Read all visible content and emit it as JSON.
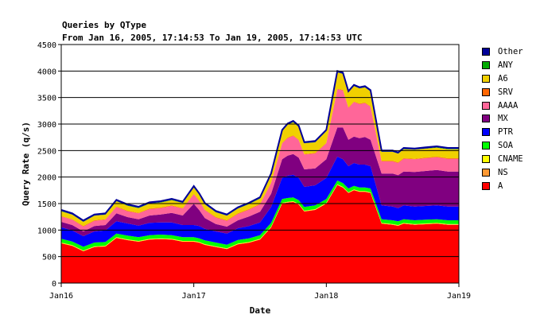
{
  "chart_data": {
    "type": "area",
    "stacked": true,
    "title": "Queries by QType",
    "subtitle": "From Jan 16, 2005, 17:14:53 To Jan 19, 2005, 17:14:53 UTC",
    "xlabel": "Date",
    "ylabel": "Query Rate (q/s)",
    "ylim": [
      0,
      4500
    ],
    "yticks": [
      0,
      500,
      1000,
      1500,
      2000,
      2500,
      3000,
      3500,
      4000,
      4500
    ],
    "x_range": [
      0,
      72
    ],
    "xticks": [
      {
        "at": 0,
        "label": "Jan16"
      },
      {
        "at": 24,
        "label": "Jan17"
      },
      {
        "at": 48,
        "label": "Jan18"
      },
      {
        "at": 72,
        "label": "Jan19"
      }
    ],
    "grid": true,
    "legend_position": "right",
    "x": [
      0,
      2,
      4,
      6,
      8,
      10,
      12,
      14,
      16,
      18,
      20,
      22,
      24,
      25,
      26,
      28,
      30,
      32,
      34,
      36,
      38,
      40,
      41,
      42,
      43,
      44,
      46,
      48,
      50,
      51,
      52,
      53,
      54,
      55,
      56,
      58,
      60,
      61,
      62,
      64,
      66,
      68,
      70,
      72
    ],
    "series": [
      {
        "name": "A",
        "color": "#ff0000",
        "values": [
          750,
          700,
          600,
          680,
          690,
          850,
          810,
          780,
          820,
          830,
          820,
          780,
          780,
          760,
          720,
          680,
          640,
          730,
          760,
          820,
          1050,
          1500,
          1520,
          1530,
          1480,
          1350,
          1380,
          1500,
          1850,
          1800,
          1700,
          1750,
          1720,
          1720,
          1700,
          1120,
          1100,
          1080,
          1120,
          1100,
          1110,
          1120,
          1100,
          1100
        ]
      },
      {
        "name": "NS",
        "color": "#ff9933",
        "values": [
          5,
          5,
          5,
          5,
          5,
          5,
          5,
          5,
          5,
          5,
          5,
          5,
          5,
          5,
          5,
          5,
          5,
          5,
          5,
          5,
          5,
          5,
          5,
          5,
          5,
          5,
          5,
          5,
          5,
          5,
          5,
          5,
          5,
          5,
          5,
          5,
          5,
          5,
          5,
          5,
          5,
          5,
          5,
          5
        ]
      },
      {
        "name": "CNAME",
        "color": "#ffff00",
        "values": [
          10,
          10,
          10,
          10,
          10,
          10,
          10,
          10,
          10,
          10,
          10,
          10,
          10,
          10,
          10,
          10,
          10,
          10,
          10,
          10,
          10,
          10,
          10,
          10,
          10,
          10,
          10,
          10,
          10,
          10,
          10,
          10,
          10,
          10,
          10,
          10,
          10,
          10,
          10,
          10,
          10,
          10,
          10,
          10
        ]
      },
      {
        "name": "SOA",
        "color": "#00ff00",
        "values": [
          70,
          70,
          70,
          70,
          70,
          70,
          70,
          70,
          70,
          70,
          70,
          70,
          70,
          70,
          70,
          70,
          70,
          70,
          70,
          70,
          70,
          70,
          70,
          70,
          70,
          70,
          70,
          70,
          70,
          70,
          70,
          70,
          70,
          70,
          70,
          70,
          70,
          70,
          70,
          70,
          70,
          70,
          70,
          70
        ]
      },
      {
        "name": "PTR",
        "color": "#0000ff",
        "values": [
          220,
          210,
          200,
          210,
          220,
          230,
          230,
          220,
          230,
          230,
          240,
          230,
          230,
          230,
          220,
          210,
          210,
          220,
          230,
          240,
          300,
          400,
          420,
          430,
          420,
          380,
          380,
          400,
          450,
          450,
          420,
          430,
          430,
          430,
          420,
          260,
          260,
          250,
          260,
          260,
          260,
          260,
          260,
          260
        ]
      },
      {
        "name": "MX",
        "color": "#800080",
        "values": [
          100,
          100,
          90,
          100,
          100,
          150,
          120,
          120,
          140,
          150,
          180,
          180,
          400,
          300,
          200,
          140,
          130,
          150,
          180,
          200,
          250,
          350,
          380,
          390,
          380,
          330,
          320,
          350,
          550,
          600,
          500,
          500,
          500,
          520,
          500,
          600,
          620,
          620,
          640,
          650,
          660,
          670,
          660,
          660
        ]
      },
      {
        "name": "AAAA",
        "color": "#ff6699",
        "values": [
          100,
          100,
          90,
          100,
          100,
          120,
          110,
          110,
          120,
          120,
          130,
          130,
          180,
          170,
          150,
          120,
          110,
          120,
          130,
          140,
          200,
          300,
          330,
          340,
          330,
          280,
          280,
          300,
          720,
          700,
          600,
          650,
          640,
          640,
          620,
          230,
          230,
          230,
          240,
          240,
          240,
          240,
          240,
          240
        ]
      },
      {
        "name": "SRV",
        "color": "#ff6600",
        "values": [
          10,
          10,
          10,
          10,
          10,
          10,
          10,
          10,
          10,
          10,
          10,
          10,
          10,
          10,
          10,
          10,
          10,
          10,
          10,
          10,
          10,
          10,
          10,
          10,
          10,
          10,
          10,
          10,
          10,
          10,
          10,
          10,
          10,
          10,
          10,
          10,
          10,
          10,
          10,
          10,
          10,
          10,
          10,
          10
        ]
      },
      {
        "name": "A6",
        "color": "#f0d000",
        "values": [
          90,
          85,
          80,
          85,
          85,
          100,
          95,
          90,
          95,
          95,
          100,
          95,
          120,
          110,
          100,
          90,
          85,
          90,
          95,
          100,
          150,
          220,
          240,
          250,
          240,
          200,
          200,
          220,
          310,
          300,
          280,
          290,
          285,
          285,
          280,
          170,
          170,
          165,
          170,
          170,
          170,
          170,
          170,
          170
        ]
      },
      {
        "name": "ANY",
        "color": "#00aa00",
        "values": [
          5,
          5,
          5,
          5,
          5,
          5,
          5,
          5,
          5,
          5,
          5,
          5,
          5,
          5,
          5,
          5,
          5,
          5,
          5,
          5,
          5,
          5,
          5,
          5,
          5,
          5,
          5,
          5,
          5,
          5,
          5,
          5,
          5,
          5,
          5,
          5,
          5,
          5,
          5,
          5,
          5,
          5,
          5,
          5
        ]
      },
      {
        "name": "Other",
        "color": "#000099",
        "values": [
          20,
          20,
          20,
          20,
          20,
          20,
          20,
          20,
          20,
          20,
          20,
          20,
          20,
          20,
          20,
          20,
          20,
          20,
          20,
          20,
          20,
          20,
          20,
          20,
          20,
          20,
          20,
          20,
          20,
          20,
          20,
          20,
          20,
          20,
          20,
          20,
          20,
          20,
          20,
          20,
          20,
          20,
          20,
          20
        ]
      }
    ],
    "legend_order": [
      "Other",
      "ANY",
      "A6",
      "SRV",
      "AAAA",
      "MX",
      "PTR",
      "SOA",
      "CNAME",
      "NS",
      "A"
    ]
  }
}
